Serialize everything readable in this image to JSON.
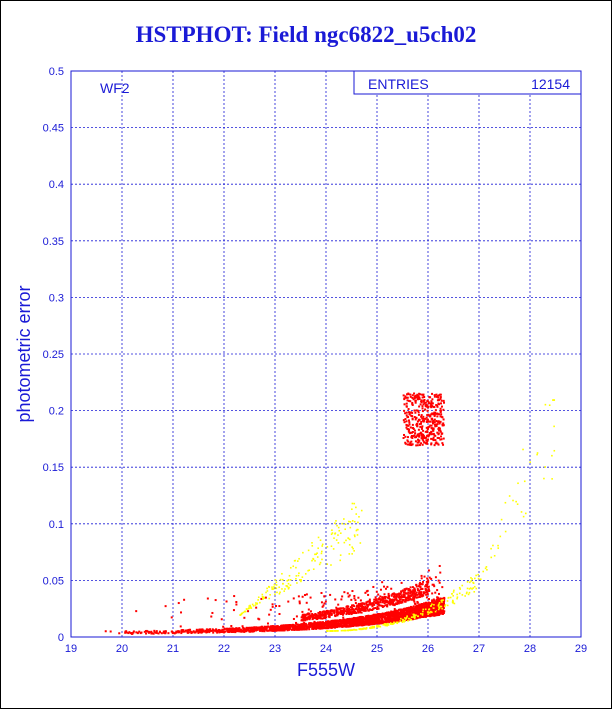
{
  "chart_data": {
    "type": "scatter",
    "title": "HSTPHOT: Field ngc6822_u5ch02",
    "xlabel": "F555W",
    "ylabel": "photometric error",
    "xlim": [
      19,
      29
    ],
    "ylim": [
      0,
      0.5
    ],
    "x_ticks": [
      "19",
      "20",
      "21",
      "22",
      "23",
      "24",
      "25",
      "26",
      "27",
      "28",
      "29"
    ],
    "y_ticks": [
      "0",
      "0.05",
      "0.1",
      "0.15",
      "0.2",
      "0.25",
      "0.3",
      "0.35",
      "0.4",
      "0.45",
      "0.5"
    ],
    "grid": true,
    "panel_label": "WF2",
    "stats_box": {
      "label": "ENTRIES",
      "value": "12154"
    },
    "series": [
      {
        "color": "#ff0000",
        "description_points": [
          [
            19.2,
            0.004
          ],
          [
            19.6,
            0.004
          ],
          [
            20.2,
            0.005
          ],
          [
            20.6,
            0.006
          ],
          [
            21.0,
            0.007
          ],
          [
            21.5,
            0.009
          ],
          [
            22.0,
            0.012
          ],
          [
            22.5,
            0.016
          ],
          [
            23.0,
            0.021
          ],
          [
            23.5,
            0.03
          ],
          [
            24.0,
            0.042
          ],
          [
            24.5,
            0.06
          ],
          [
            25.0,
            0.085
          ],
          [
            25.5,
            0.12
          ],
          [
            25.9,
            0.165
          ],
          [
            26.2,
            0.215
          ]
        ]
      },
      {
        "color": "#ffff00",
        "description_points": [
          [
            22.4,
            0.035
          ],
          [
            23.0,
            0.045
          ],
          [
            23.5,
            0.06
          ],
          [
            24.0,
            0.08
          ],
          [
            24.4,
            0.095
          ],
          [
            24.5,
            0.012
          ],
          [
            25.0,
            0.009
          ],
          [
            25.5,
            0.012
          ],
          [
            26.0,
            0.015
          ],
          [
            26.5,
            0.025
          ],
          [
            27.0,
            0.04
          ],
          [
            27.3,
            0.06
          ],
          [
            27.7,
            0.11
          ],
          [
            28.2,
            0.17
          ],
          [
            28.5,
            0.215
          ]
        ]
      }
    ]
  }
}
